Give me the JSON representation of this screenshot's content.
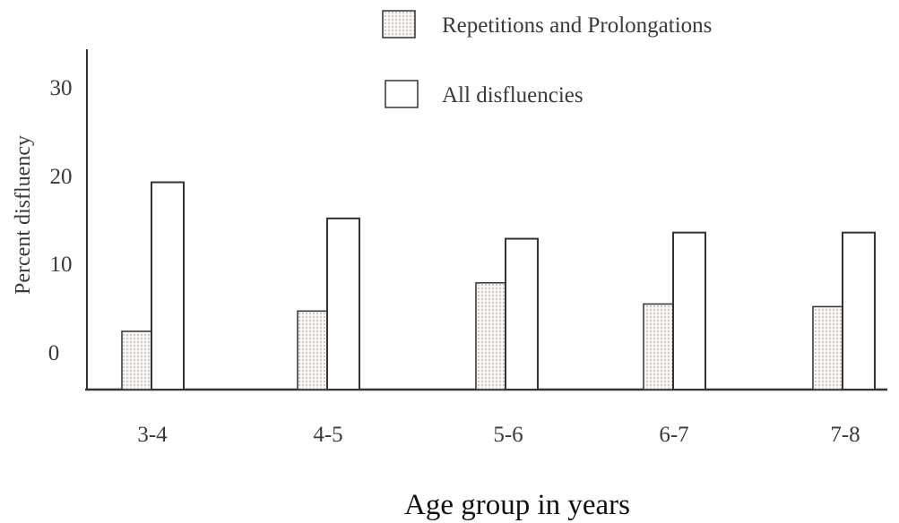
{
  "chart_data": {
    "type": "bar",
    "title": "",
    "xlabel": "Age group in years",
    "ylabel": "Percent disfluency",
    "categories": [
      "3-4",
      "4-5",
      "5-6",
      "6-7",
      "7-8"
    ],
    "yticks": [
      "0",
      "10",
      "20",
      "30"
    ],
    "ylim": [
      0,
      34
    ],
    "series": [
      {
        "name": "Repetitions and Prolongations",
        "values": [
          6.6,
          8.9,
          12.1,
          9.7,
          9.4
        ],
        "fill": "dotted"
      },
      {
        "name": "All disfluencies",
        "values": [
          23.5,
          19.4,
          17.1,
          17.8,
          17.8
        ],
        "fill": "#ffffff"
      }
    ],
    "legend_position": "top-right",
    "grid": false
  },
  "colors": {
    "stroke": "#333333",
    "dots": "#9a9a9a",
    "background": "#ffffff"
  }
}
